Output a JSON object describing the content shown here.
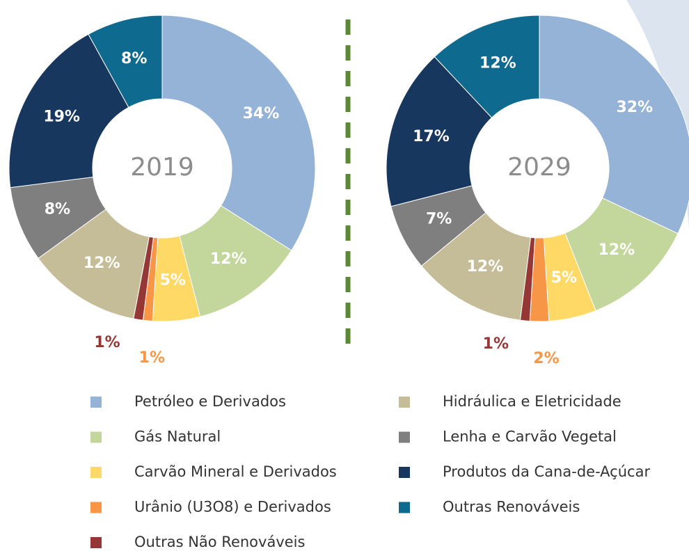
{
  "chart_data": [
    {
      "type": "pie",
      "title": "2019",
      "categories": [
        "Petróleo e Derivados",
        "Gás Natural",
        "Carvão Mineral e Derivados",
        "Urânio (U3O8) e Derivados",
        "Outras Não Renováveis",
        "Hidráulica e Eletricidade",
        "Lenha e Carvão Vegetal",
        "Produtos da Cana-de-Açúcar",
        "Outras Renováveis"
      ],
      "values": [
        34,
        12,
        5,
        1,
        1,
        12,
        8,
        19,
        8
      ],
      "value_labels": [
        "34%",
        "12%",
        "5%",
        "1%",
        "1%",
        "12%",
        "8%",
        "19%",
        "8%"
      ],
      "colors": [
        "#95b3d7",
        "#c3d69b",
        "#ffd966",
        "#f79646",
        "#953735",
        "#c4bd97",
        "#7f7f7f",
        "#17375e",
        "#0e6a8e"
      ]
    },
    {
      "type": "pie",
      "title": "2029",
      "categories": [
        "Petróleo e Derivados",
        "Gás Natural",
        "Carvão Mineral e Derivados",
        "Urânio (U3O8) e Derivados",
        "Outras Não Renováveis",
        "Hidráulica e Eletricidade",
        "Lenha e Carvão Vegetal",
        "Produtos da Cana-de-Açúcar",
        "Outras Renováveis"
      ],
      "values": [
        32,
        12,
        5,
        2,
        1,
        12,
        7,
        17,
        12
      ],
      "value_labels": [
        "32%",
        "12%",
        "5%",
        "2%",
        "1%",
        "12%",
        "7%",
        "17%",
        "12%"
      ],
      "colors": [
        "#95b3d7",
        "#c3d69b",
        "#ffd966",
        "#f79646",
        "#953735",
        "#c4bd97",
        "#7f7f7f",
        "#17375e",
        "#0e6a8e"
      ]
    }
  ]
}
